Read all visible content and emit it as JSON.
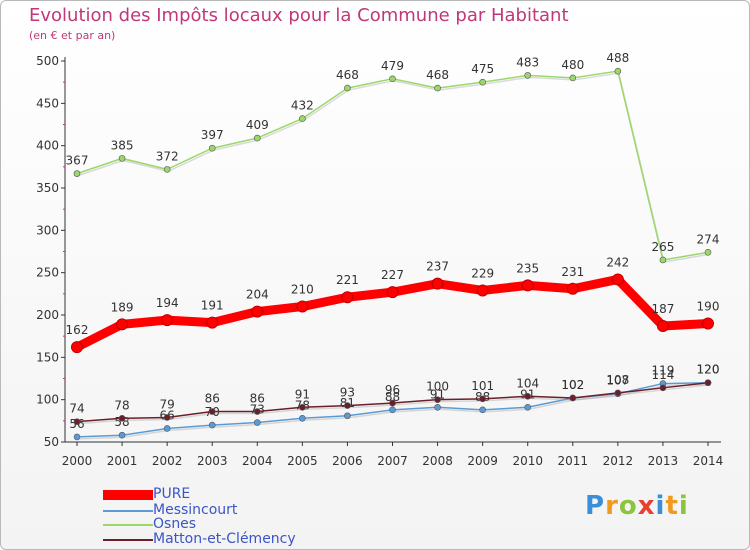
{
  "title": "Evolution des Impôts locaux pour la Commune par Habitant",
  "subtitle": "(en € et par an)",
  "logo_text": "Proxiti",
  "chart_data": {
    "type": "line",
    "x": [
      "2000",
      "2001",
      "2002",
      "2003",
      "2004",
      "2005",
      "2006",
      "2007",
      "2008",
      "2009",
      "2010",
      "2011",
      "2012",
      "2013",
      "2014"
    ],
    "ylim": [
      50,
      500
    ],
    "yticks": [
      50,
      100,
      150,
      200,
      250,
      300,
      350,
      400,
      450,
      500
    ],
    "grid": false,
    "legend_position": "bottom-left",
    "series": [
      {
        "name": "PURE",
        "color": "#ff0000",
        "values": [
          162,
          189,
          194,
          191,
          204,
          210,
          221,
          227,
          237,
          229,
          235,
          231,
          242,
          187,
          190
        ],
        "labels": [
          "162",
          "189",
          "194",
          "191",
          "204",
          "210",
          "221",
          "227",
          "237",
          "229",
          "235",
          "231",
          "242",
          "187",
          "190"
        ]
      },
      {
        "name": "Messincourt",
        "color": "#5b9bd5",
        "values": [
          56,
          58,
          66,
          70,
          73,
          78,
          81,
          88,
          91,
          88,
          91,
          102,
          107,
          119,
          120
        ],
        "labels": [
          "56",
          "58",
          "66",
          "70",
          "73",
          "78",
          "81",
          "88",
          "91",
          "88",
          "91",
          "102",
          "107",
          "119",
          "120"
        ]
      },
      {
        "name": "Osnes",
        "color": "#9bd86a",
        "values": [
          367,
          385,
          372,
          397,
          409,
          432,
          468,
          479,
          468,
          475,
          483,
          480,
          488,
          265,
          274
        ],
        "labels": [
          "367",
          "385",
          "372",
          "397",
          "409",
          "432",
          "468",
          "479",
          "468",
          "475",
          "483",
          "480",
          "488",
          "265",
          "274"
        ]
      },
      {
        "name": "Matton-et-Clémency",
        "color": "#6b1f2a",
        "values": [
          74,
          78,
          79,
          86,
          86,
          91,
          93,
          96,
          100,
          101,
          104,
          102,
          108,
          114,
          120
        ],
        "labels": [
          "74",
          "78",
          "79",
          "86",
          "86",
          "91",
          "93",
          "96",
          "100",
          "101",
          "104",
          "102",
          "108",
          "114",
          "120"
        ]
      }
    ]
  }
}
